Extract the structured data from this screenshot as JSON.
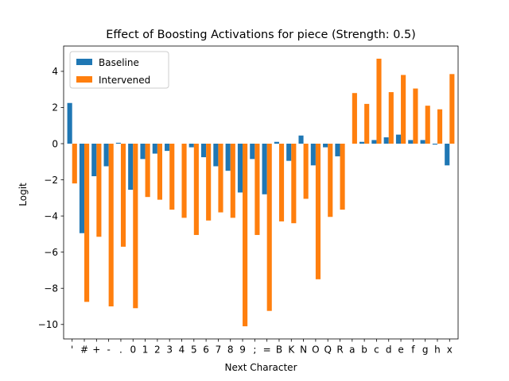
{
  "chart_data": {
    "type": "bar",
    "title": "Effect of Boosting Activations for piece (Strength: 0.5)",
    "xlabel": "Next Character",
    "ylabel": "Logit",
    "ylim": [
      -10.8,
      5.4
    ],
    "yticks": [
      -10,
      -8,
      -6,
      -4,
      -2,
      0,
      2,
      4
    ],
    "legend_position": "top-left",
    "categories": [
      "'",
      "#",
      "+",
      "-",
      ".",
      "0",
      "1",
      "2",
      "3",
      "4",
      "5",
      "6",
      "7",
      "8",
      "9",
      ";",
      "=",
      "B",
      "K",
      "N",
      "O",
      "Q",
      "R",
      "a",
      "b",
      "c",
      "d",
      "e",
      "f",
      "g",
      "h",
      "x"
    ],
    "series": [
      {
        "name": "Baseline",
        "color": "#1f77b4",
        "values": [
          2.25,
          -4.95,
          -1.8,
          -1.25,
          0.05,
          -2.55,
          -0.85,
          -0.55,
          -0.4,
          0.0,
          -0.2,
          -0.75,
          -1.25,
          -1.5,
          -2.7,
          -0.85,
          -2.8,
          0.1,
          -0.95,
          0.45,
          -1.2,
          -0.2,
          -0.7,
          0.0,
          0.1,
          0.2,
          0.35,
          0.5,
          0.2,
          0.2,
          -0.05,
          -1.2
        ]
      },
      {
        "name": "Intervened",
        "color": "#ff7f0e",
        "values": [
          -2.2,
          -8.75,
          -5.15,
          -9.0,
          -5.7,
          -9.1,
          -2.95,
          -3.1,
          -3.65,
          -4.1,
          -5.05,
          -4.25,
          -3.8,
          -4.1,
          -10.1,
          -5.05,
          -9.25,
          -4.3,
          -4.4,
          -3.05,
          -7.5,
          -4.05,
          -3.65,
          2.8,
          2.2,
          4.7,
          2.85,
          3.8,
          3.05,
          2.1,
          1.9,
          3.85
        ]
      }
    ]
  }
}
